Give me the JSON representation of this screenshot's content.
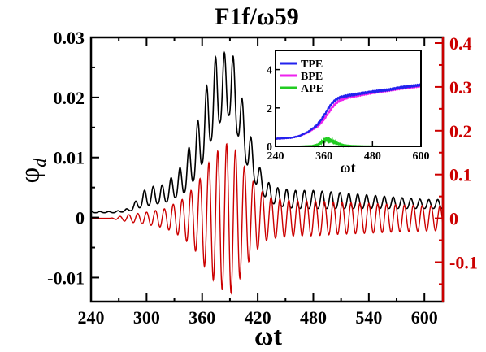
{
  "chart_data": [
    {
      "type": "line",
      "title": "F1f/ω59",
      "xlabel": "ωt",
      "ylabel": "φd",
      "xlim": [
        240,
        620
      ],
      "ylim": [
        -0.014,
        0.03
      ],
      "y2lim": [
        -0.19,
        0.413
      ],
      "x_ticks": [
        "240",
        "300",
        "360",
        "420",
        "480",
        "540",
        "600"
      ],
      "y_ticks": [
        "-0.01",
        "0",
        "0.01",
        "0.02",
        "0.03"
      ],
      "y2_ticks": [
        "-0.1",
        "0",
        "0.1",
        "0.2",
        "0.3",
        "0.4"
      ],
      "grid": false,
      "colors": {
        "left_series": "#000000",
        "right_series": "#cc0000",
        "right_axis": "#cc0000"
      },
      "series": [
        {
          "axis": "left",
          "envelope_upper_x": [
            240,
            265,
            280,
            290,
            300,
            320,
            340,
            355,
            365,
            375,
            385,
            392,
            400,
            410,
            420,
            430,
            440,
            460,
            480,
            520,
            560,
            600,
            620
          ],
          "envelope_upper_y": [
            0.001,
            0.001,
            0.0015,
            0.003,
            0.005,
            0.0055,
            0.009,
            0.016,
            0.022,
            0.027,
            0.0275,
            0.028,
            0.022,
            0.015,
            0.009,
            0.006,
            0.005,
            0.0045,
            0.0045,
            0.004,
            0.0035,
            0.003,
            0.003
          ],
          "envelope_lower_x": [
            240,
            265,
            280,
            290,
            300,
            320,
            340,
            355,
            365,
            375,
            385,
            392,
            400,
            410,
            420,
            430,
            440,
            460,
            480,
            520,
            560,
            600,
            620
          ],
          "envelope_lower_y": [
            0.0008,
            0.0008,
            0.001,
            0.0015,
            0.002,
            0.0025,
            0.004,
            0.007,
            0.011,
            0.015,
            0.017,
            0.017,
            0.013,
            0.008,
            0.005,
            0.003,
            0.002,
            0.0015,
            0.0015,
            0.0015,
            0.0015,
            0.0015,
            0.0015
          ]
        },
        {
          "axis": "right",
          "envelope_x": [
            240,
            260,
            280,
            300,
            320,
            340,
            355,
            365,
            375,
            385,
            392,
            400,
            410,
            420,
            430,
            440,
            460,
            480,
            500,
            540,
            580,
            620
          ],
          "envelope_amplitude": [
            0,
            0,
            0.008,
            0.014,
            0.022,
            0.045,
            0.08,
            0.12,
            0.15,
            0.17,
            0.17,
            0.14,
            0.1,
            0.07,
            0.05,
            0.045,
            0.04,
            0.04,
            0.037,
            0.034,
            0.03,
            0.028
          ]
        }
      ]
    },
    {
      "type": "line",
      "title": "",
      "xlabel": "ωt",
      "ylabel": "",
      "xlim": [
        240,
        600
      ],
      "ylim": [
        0,
        5
      ],
      "x_ticks": [
        "240",
        "360",
        "480",
        "600"
      ],
      "y_ticks": [
        "0",
        "2",
        "4"
      ],
      "legend": "top-left",
      "series": [
        {
          "name": "TPE",
          "color": "#2222ee",
          "x": [
            240,
            280,
            300,
            320,
            340,
            350,
            360,
            370,
            380,
            390,
            400,
            420,
            450,
            480,
            520,
            560,
            600
          ],
          "y": [
            0.4,
            0.45,
            0.55,
            0.75,
            1.05,
            1.3,
            1.6,
            1.95,
            2.25,
            2.45,
            2.55,
            2.65,
            2.75,
            2.85,
            2.95,
            3.1,
            3.2
          ]
        },
        {
          "name": "BPE",
          "color": "#ee22ee",
          "x": [
            240,
            280,
            300,
            320,
            340,
            350,
            360,
            370,
            380,
            390,
            400,
            420,
            450,
            480,
            520,
            560,
            600
          ],
          "y": [
            0.4,
            0.45,
            0.55,
            0.72,
            0.98,
            1.18,
            1.42,
            1.72,
            2.02,
            2.25,
            2.4,
            2.55,
            2.68,
            2.8,
            2.92,
            3.05,
            3.15
          ]
        },
        {
          "name": "APE",
          "color": "#22cc22",
          "x": [
            240,
            300,
            330,
            345,
            355,
            365,
            375,
            385,
            395,
            410,
            430,
            460,
            500,
            600
          ],
          "y": [
            0,
            0.01,
            0.04,
            0.12,
            0.3,
            0.48,
            0.42,
            0.3,
            0.18,
            0.08,
            0.04,
            0.02,
            0.01,
            0.01
          ]
        }
      ]
    }
  ]
}
